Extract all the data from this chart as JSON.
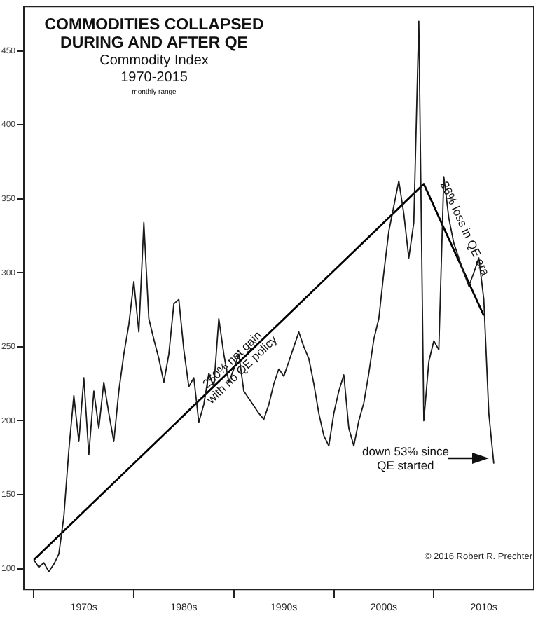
{
  "chart_data": {
    "type": "line",
    "title": "COMMODITIES COLLAPSED\nDURING AND AFTER QE",
    "subtitle": "Commodity Index\n1970-2015",
    "categories": [
      null,
      null,
      null,
      null,
      null,
      null,
      null,
      null,
      null,
      null,
      null,
      null,
      "1970s",
      null,
      null,
      null,
      null,
      null,
      null,
      null,
      null,
      null,
      null,
      null,
      null,
      null,
      null,
      null,
      null,
      null,
      null,
      null,
      "1980s",
      null,
      null,
      null,
      null,
      null,
      null,
      null,
      null,
      null,
      null,
      null,
      null,
      null,
      null,
      null,
      null,
      null,
      null,
      null,
      "1990s",
      null,
      null,
      null,
      null,
      null,
      null,
      null,
      null,
      null,
      null,
      null,
      null,
      null,
      null,
      null,
      null,
      null,
      null,
      null,
      "2000s",
      null,
      null,
      null,
      null,
      null,
      null,
      null,
      null,
      null,
      null,
      null,
      null,
      null,
      null,
      null,
      null,
      null,
      null,
      null,
      "2010s",
      null,
      null,
      null,
      null,
      null,
      null,
      null,
      null,
      null,
      null
    ],
    "ylim": [
      86,
      480
    ],
    "yticks": [
      100,
      150,
      200,
      250,
      300,
      350,
      400,
      450
    ],
    "grid": false,
    "legend": false,
    "marker": "none",
    "series": [
      {
        "color": "#1a1a1a",
        "values": [
          null,
          null,
          106,
          101,
          104,
          98,
          103,
          110,
          135,
          180,
          217,
          186,
          229,
          177,
          220,
          195,
          226,
          205,
          186,
          220,
          245,
          265,
          294,
          260,
          334,
          269,
          255,
          242,
          226,
          245,
          279,
          282,
          248,
          223,
          229,
          199,
          211,
          232,
          223,
          269,
          245,
          226,
          235,
          245,
          220,
          215,
          210,
          205,
          201,
          211,
          225,
          235,
          230,
          240,
          250,
          260,
          250,
          242,
          225,
          205,
          190,
          183,
          205,
          220,
          231,
          195,
          183,
          200,
          212,
          232,
          255,
          269,
          300,
          328,
          345,
          362,
          340,
          310,
          334,
          470,
          200,
          240,
          254,
          248,
          365,
          337,
          320,
          310,
          300,
          291,
          300,
          310,
          282,
          205,
          171,
          null,
          null,
          null,
          null,
          null,
          null,
          null,
          null
        ]
      },
      {
        "type": "line",
        "color": "#000000",
        "values": [
          null,
          null,
          106,
          null,
          null,
          null,
          null,
          null,
          null,
          null,
          null,
          null,
          null,
          null,
          null,
          null,
          null,
          null,
          null,
          null,
          null,
          null,
          null,
          null,
          null,
          null,
          null,
          null,
          null,
          null,
          null,
          null,
          null,
          null,
          null,
          null,
          null,
          null,
          null,
          null,
          null,
          null,
          null,
          null,
          null,
          null,
          null,
          null,
          null,
          null,
          null,
          null,
          null,
          null,
          null,
          null,
          null,
          null,
          null,
          null,
          null,
          null,
          null,
          null,
          null,
          null,
          null,
          null,
          null,
          null,
          null,
          null,
          null,
          null,
          null,
          null,
          null,
          null,
          null,
          null,
          360,
          null,
          null,
          null,
          null,
          null,
          null,
          null,
          null,
          null,
          null,
          null,
          271,
          null,
          null,
          null,
          null,
          null,
          null,
          null,
          null,
          null,
          null
        ]
      }
    ],
    "annotations": [
      "monthly range",
      "250% net gain\nwith no QE policy",
      "26% loss in QE era",
      "down 53% since\nQE started",
      "© 2016 Robert R. Prechter"
    ]
  }
}
